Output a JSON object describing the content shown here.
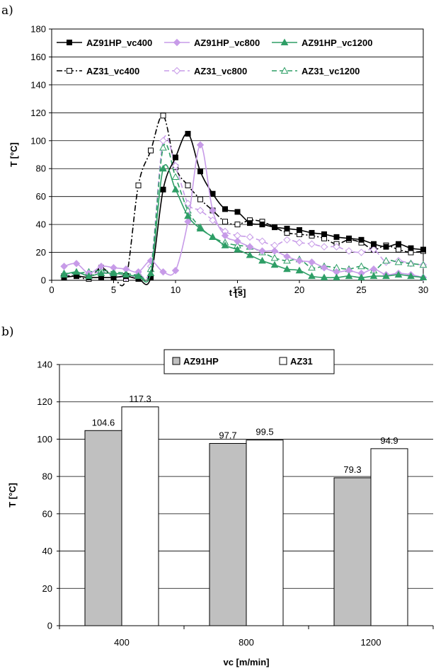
{
  "chart_data": [
    {
      "panel_label": "a)",
      "type": "line",
      "xlabel": "t [s]",
      "ylabel": "T [°C]",
      "xlim": [
        0,
        30
      ],
      "ylim": [
        0,
        180
      ],
      "xticks": [
        0,
        5,
        10,
        15,
        20,
        25,
        30
      ],
      "yticks": [
        0,
        20,
        40,
        60,
        80,
        100,
        120,
        140,
        160,
        180
      ],
      "grid": "horizontal",
      "legend": "top, inside plot, 3 columns",
      "series": [
        {
          "name": "AZ91HP_vc400",
          "color": "#000000",
          "marker": "square-filled",
          "line": "solid",
          "x": [
            1,
            2,
            3,
            4,
            5,
            6,
            7,
            8,
            9,
            10,
            11,
            12,
            13,
            14,
            15,
            16,
            17,
            18,
            19,
            20,
            21,
            22,
            23,
            24,
            25,
            26,
            27,
            28,
            29,
            30
          ],
          "y": [
            2,
            3,
            2,
            2,
            2,
            3,
            1,
            2,
            65,
            88,
            105,
            78,
            62,
            51,
            49,
            41,
            40,
            38,
            37,
            36,
            34,
            33,
            31,
            30,
            29,
            26,
            24,
            26,
            23,
            22
          ]
        },
        {
          "name": "AZ91HP_vc800",
          "color": "#c79be8",
          "marker": "diamond-filled",
          "line": "solid",
          "x": [
            1,
            2,
            3,
            4,
            5,
            6,
            7,
            8,
            9,
            10,
            11,
            12,
            13,
            14,
            15,
            16,
            17,
            18,
            19,
            20,
            21,
            22,
            23,
            24,
            25,
            26,
            27,
            28,
            29,
            30
          ],
          "y": [
            10,
            12,
            5,
            10,
            9,
            8,
            6,
            14,
            6,
            7,
            42,
            97,
            50,
            32,
            28,
            24,
            21,
            21,
            17,
            14,
            13,
            9,
            6,
            7,
            5,
            8,
            4,
            5,
            4,
            2
          ]
        },
        {
          "name": "AZ91HP_vc1200",
          "color": "#2e9e66",
          "marker": "triangle-filled",
          "line": "solid",
          "x": [
            1,
            2,
            3,
            4,
            5,
            6,
            7,
            8,
            9,
            10,
            11,
            12,
            13,
            14,
            15,
            16,
            17,
            18,
            19,
            20,
            21,
            22,
            23,
            24,
            25,
            26,
            27,
            28,
            29,
            30
          ],
          "y": [
            4,
            6,
            3,
            5,
            5,
            4,
            3,
            5,
            80,
            65,
            46,
            37,
            31,
            25,
            22,
            18,
            14,
            11,
            8,
            7,
            3,
            2,
            2,
            3,
            2,
            3,
            3,
            4,
            3,
            2
          ]
        },
        {
          "name": "AZ31_vc400",
          "color": "#000000",
          "marker": "square-open",
          "line": "dashdot",
          "x": [
            1,
            2,
            3,
            4,
            5,
            6,
            7,
            8,
            9,
            10,
            11,
            12,
            13,
            14,
            15,
            16,
            17,
            18,
            19,
            20,
            21,
            22,
            23,
            24,
            25,
            26,
            27,
            28,
            29,
            30
          ],
          "y": [
            3,
            3,
            1,
            9,
            2,
            1,
            68,
            93,
            118,
            81,
            68,
            58,
            50,
            42,
            40,
            43,
            42,
            38,
            34,
            33,
            32,
            30,
            26,
            29,
            27,
            22,
            25,
            22,
            20,
            21
          ]
        },
        {
          "name": "AZ31_vc800",
          "color": "#c79be8",
          "marker": "diamond-open",
          "line": "dashed",
          "x": [
            1,
            2,
            3,
            4,
            5,
            6,
            7,
            8,
            9,
            10,
            11,
            12,
            13,
            14,
            15,
            16,
            17,
            18,
            19,
            20,
            21,
            22,
            23,
            24,
            25,
            26,
            27,
            28,
            29,
            30
          ],
          "y": [
            3,
            5,
            4,
            6,
            3,
            2,
            4,
            10,
            100,
            82,
            55,
            50,
            43,
            35,
            32,
            31,
            28,
            25,
            29,
            27,
            26,
            24,
            24,
            21,
            20,
            22,
            13,
            14,
            12,
            11
          ]
        },
        {
          "name": "AZ31_vc1200",
          "color": "#2e9e66",
          "marker": "triangle-open",
          "line": "dashed",
          "x": [
            1,
            2,
            3,
            4,
            5,
            6,
            7,
            8,
            9,
            10,
            11,
            12,
            13,
            14,
            15,
            16,
            17,
            18,
            19,
            20,
            21,
            22,
            23,
            24,
            25,
            26,
            27,
            28,
            29,
            30
          ],
          "y": [
            5,
            5,
            6,
            7,
            6,
            5,
            4,
            8,
            95,
            74,
            50,
            38,
            31,
            27,
            25,
            24,
            20,
            16,
            14,
            15,
            9,
            10,
            9,
            8,
            10,
            7,
            14,
            13,
            12,
            11
          ]
        }
      ]
    },
    {
      "panel_label": "b)",
      "type": "bar",
      "xlabel": "vc [m/min]",
      "ylabel": "T [°C]",
      "categories": [
        "400",
        "800",
        "1200"
      ],
      "ylim": [
        0,
        140
      ],
      "yticks": [
        0,
        20,
        40,
        60,
        80,
        100,
        120,
        140
      ],
      "grid": "horizontal",
      "legend": "top-center, boxed",
      "series": [
        {
          "name": "AZ91HP",
          "color": "#c0c0c0",
          "values": [
            104.6,
            97.7,
            79.3
          ],
          "labels": [
            "104.6",
            "97.7",
            "79.3"
          ]
        },
        {
          "name": "AZ31",
          "color": "#ffffff",
          "values": [
            117.3,
            99.5,
            94.9
          ],
          "labels": [
            "117.3",
            "99.5",
            "94.9"
          ]
        }
      ]
    }
  ]
}
